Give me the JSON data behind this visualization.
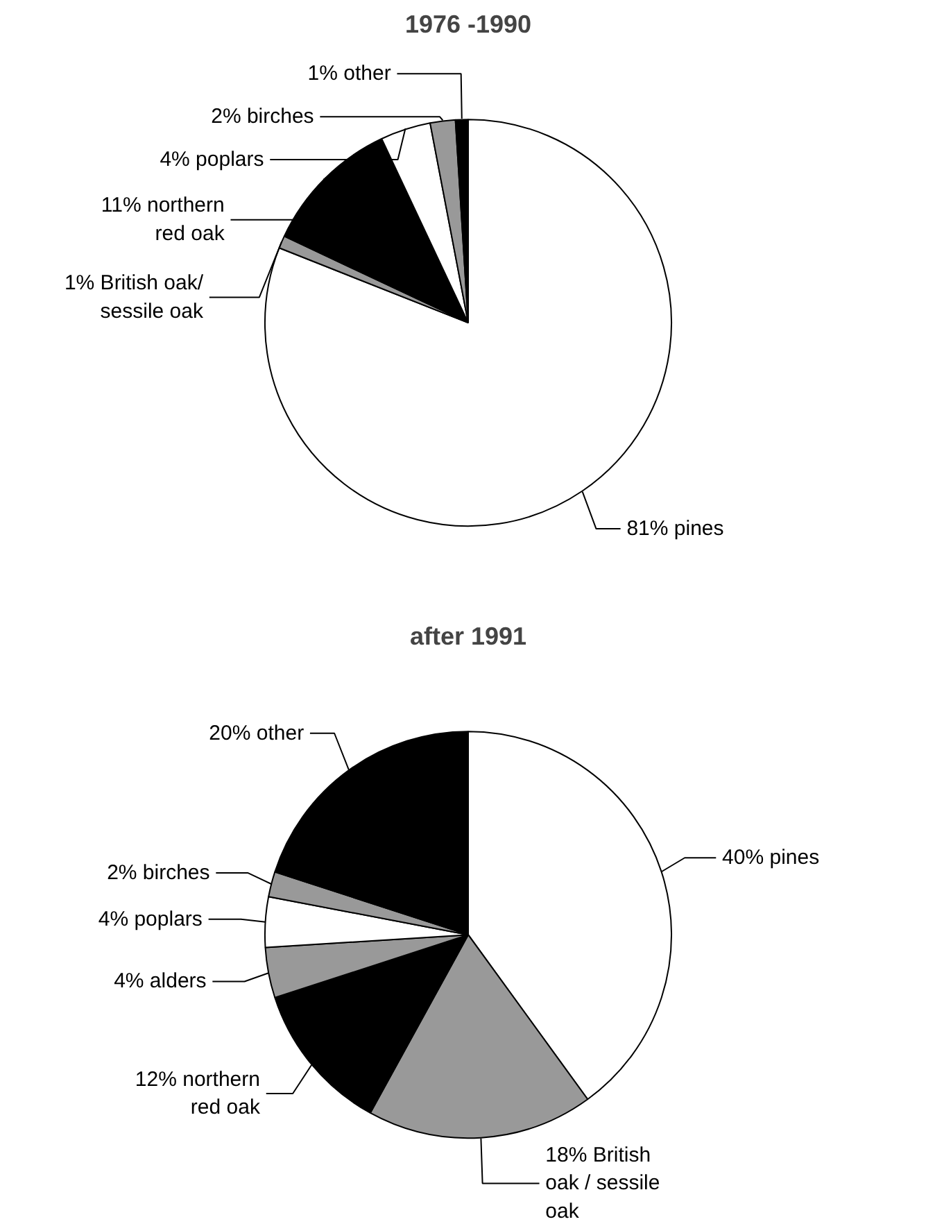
{
  "chart_data": [
    {
      "type": "pie",
      "title": "1976 -1990",
      "categories": [
        "81% pines",
        "1% British oak/\nsessile oak",
        "11% northern\nred oak",
        "4% poplars",
        "2% birches",
        "1% other"
      ],
      "values": [
        81,
        1,
        11,
        4,
        2,
        1
      ],
      "colors": [
        "#ffffff",
        "#999999",
        "#000000",
        "#ffffff",
        "#999999",
        "#000000"
      ]
    },
    {
      "type": "pie",
      "title": "after 1991",
      "categories": [
        "40% pines",
        "18% British\noak / sessile\noak",
        "12% northern\nred oak",
        "4% alders",
        "4% poplars",
        "2% birches",
        "20% other"
      ],
      "values": [
        40,
        18,
        12,
        4,
        4,
        2,
        20
      ],
      "colors": [
        "#ffffff",
        "#999999",
        "#000000",
        "#999999",
        "#ffffff",
        "#999999",
        "#000000"
      ]
    }
  ]
}
